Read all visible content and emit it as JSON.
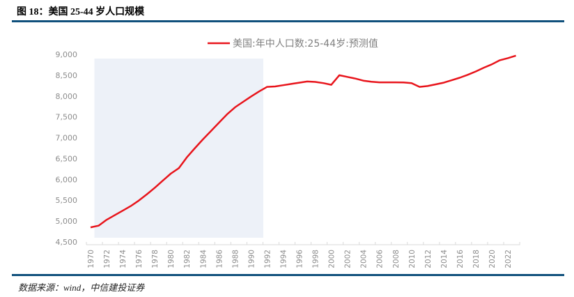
{
  "figure": {
    "title": "图 18：美国 25-44 岁人口规模",
    "source": "数据来源：wind，中信建投证券"
  },
  "colors": {
    "rule": "#0f507c",
    "line": "#e8141b",
    "shade": "#edf1f8",
    "axis_text": "#8c8c8c",
    "axis_line": "#d9d9d9"
  },
  "chart_data": {
    "type": "line",
    "title": "",
    "xlabel": "",
    "ylabel": "",
    "ylim": [
      4500,
      9000
    ],
    "yticks": [
      4500,
      5000,
      5500,
      6000,
      6500,
      7000,
      7500,
      8000,
      8500,
      9000
    ],
    "ytick_labels": [
      "4,500",
      "5,000",
      "5,500",
      "6,000",
      "6,500",
      "7,000",
      "7,500",
      "8,000",
      "8,500",
      "9,000"
    ],
    "xtick_labels": [
      "1970",
      "1972",
      "1974",
      "1976",
      "1978",
      "1980",
      "1982",
      "1984",
      "1986",
      "1988",
      "1990",
      "1992",
      "1994",
      "1996",
      "1998",
      "2000",
      "2002",
      "2004",
      "2006",
      "2008",
      "2010",
      "2012",
      "2014",
      "2016",
      "2018",
      "2020",
      "2022"
    ],
    "grid": false,
    "legend_position": "top",
    "shaded_region": {
      "from": 1971,
      "to": 1991
    },
    "x": [
      1970,
      1971,
      1972,
      1973,
      1974,
      1975,
      1976,
      1977,
      1978,
      1979,
      1980,
      1981,
      1982,
      1983,
      1984,
      1985,
      1986,
      1987,
      1988,
      1989,
      1990,
      1991,
      1992,
      1993,
      1994,
      1995,
      1996,
      1997,
      1998,
      1999,
      2000,
      2001,
      2002,
      2003,
      2004,
      2005,
      2006,
      2007,
      2008,
      2009,
      2010,
      2011,
      2012,
      2013,
      2014,
      2015,
      2016,
      2017,
      2018,
      2019,
      2020,
      2021,
      2022,
      2023
    ],
    "series": [
      {
        "name": "美国:年中人口数:25-44岁:预测值",
        "values": [
          4850,
          4890,
          5030,
          5140,
          5250,
          5360,
          5490,
          5640,
          5800,
          5970,
          6140,
          6270,
          6530,
          6750,
          6960,
          7160,
          7360,
          7560,
          7730,
          7860,
          7990,
          8110,
          8220,
          8230,
          8260,
          8290,
          8320,
          8350,
          8340,
          8310,
          8270,
          8500,
          8460,
          8420,
          8370,
          8345,
          8330,
          8330,
          8330,
          8325,
          8310,
          8220,
          8240,
          8280,
          8320,
          8380,
          8440,
          8510,
          8590,
          8680,
          8760,
          8860,
          8910,
          8970
        ]
      }
    ]
  }
}
